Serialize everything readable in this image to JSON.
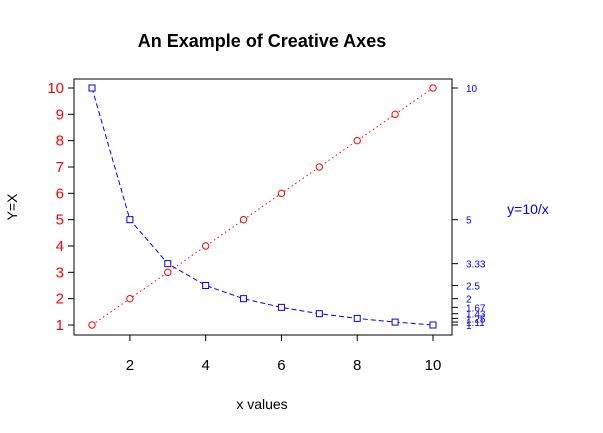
{
  "chart_data": {
    "type": "line",
    "title": "An Example of Creative Axes",
    "xlabel": "x values",
    "ylabel": "Y=X",
    "y2label": "y=10/x",
    "x": [
      1,
      2,
      3,
      4,
      5,
      6,
      7,
      8,
      9,
      10
    ],
    "xlim": [
      1,
      10
    ],
    "ylim": [
      1,
      10
    ],
    "xticks": [
      2,
      4,
      6,
      8,
      10
    ],
    "yticks": [
      1,
      2,
      3,
      4,
      5,
      6,
      7,
      8,
      9,
      10
    ],
    "y2ticks": [
      {
        "value": 10,
        "label": "10"
      },
      {
        "value": 5,
        "label": "5"
      },
      {
        "value": 3.33,
        "label": "3.33"
      },
      {
        "value": 2.5,
        "label": "2.5"
      },
      {
        "value": 2,
        "label": "2"
      },
      {
        "value": 1.67,
        "label": "1.67"
      },
      {
        "value": 1.43,
        "label": "1.43"
      },
      {
        "value": 1.25,
        "label": "1.25"
      },
      {
        "value": 1.11,
        "label": "1.11"
      },
      {
        "value": 1,
        "label": "1"
      }
    ],
    "grid": false,
    "series": [
      {
        "values": [
          1,
          2,
          3,
          4,
          5,
          6,
          7,
          8,
          9,
          10
        ],
        "color": "#ff0000",
        "marker": "circle",
        "linestyle": "dotted",
        "axis": "left"
      },
      {
        "values": [
          10,
          5,
          3.33,
          2.5,
          2,
          1.67,
          1.43,
          1.25,
          1.11,
          1
        ],
        "color": "#0000ff",
        "marker": "square",
        "linestyle": "dashed",
        "axis": "right"
      }
    ]
  }
}
